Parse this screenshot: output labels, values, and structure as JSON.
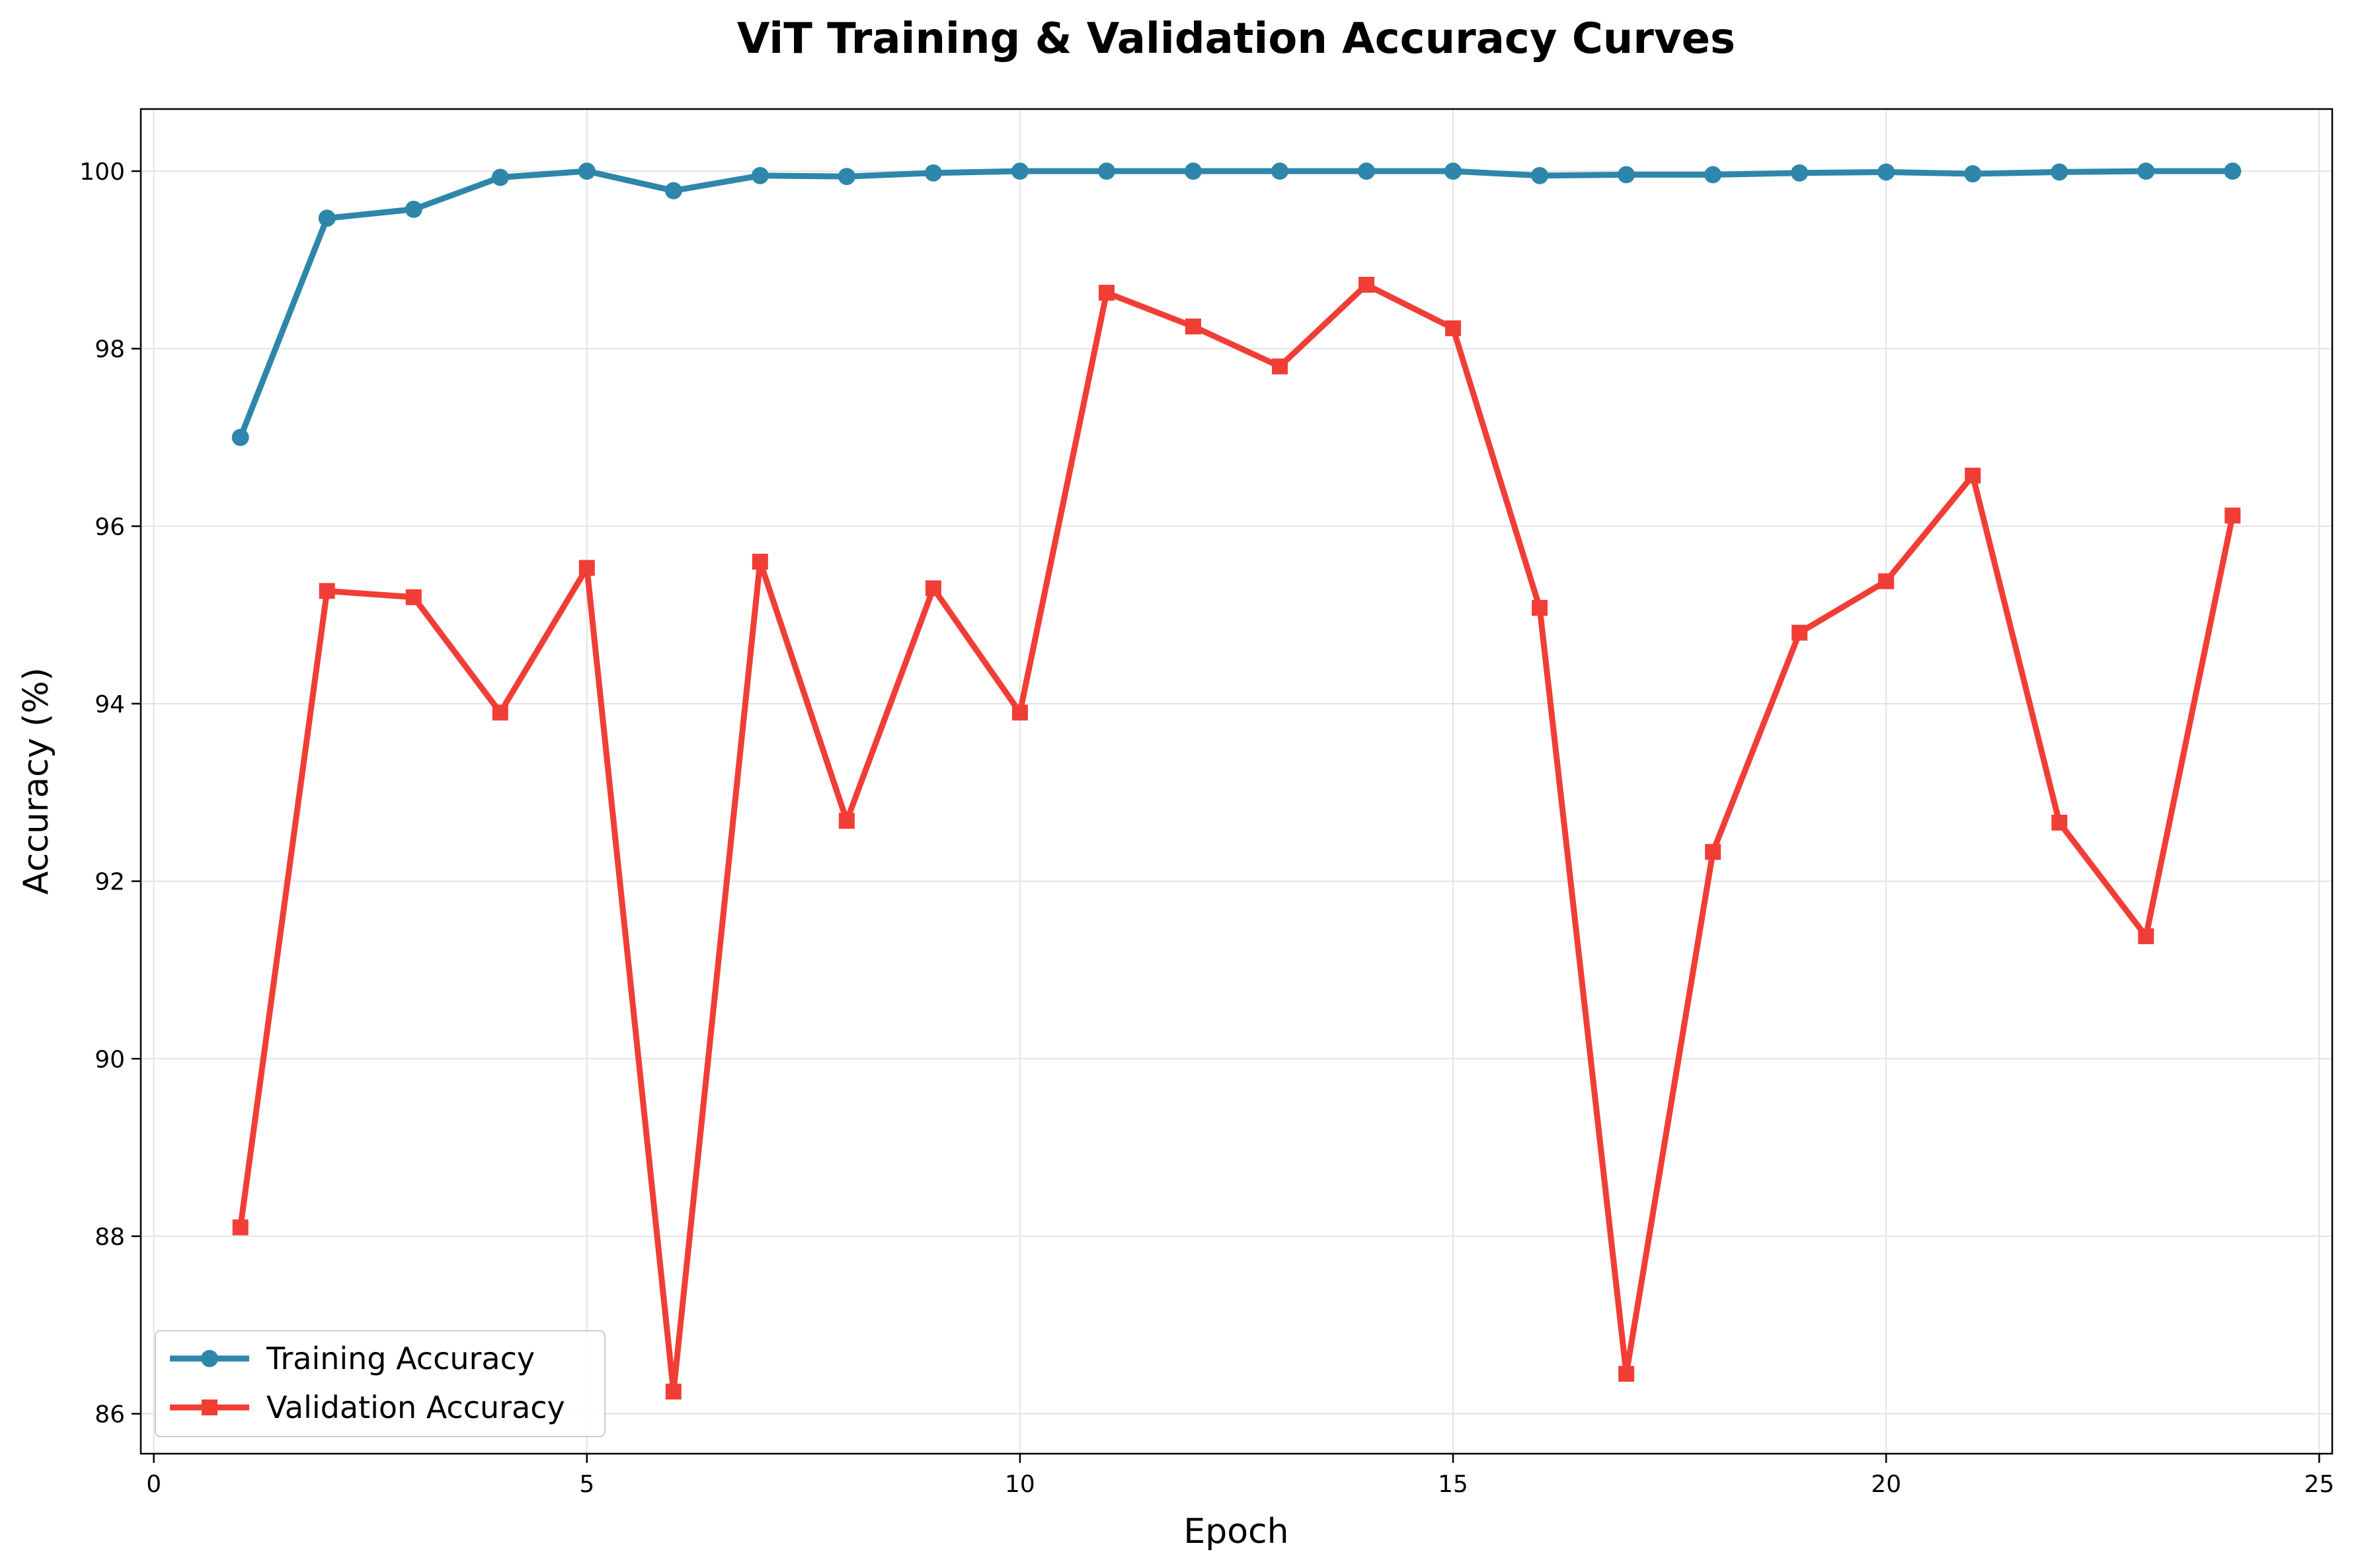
{
  "chart_data": {
    "type": "line",
    "title": "ViT Training & Validation Accuracy Curves",
    "xlabel": "Epoch",
    "ylabel": "Accuracy (%)",
    "xlim": [
      -0.15,
      25.15
    ],
    "ylim": [
      85.55,
      100.7
    ],
    "xticks": [
      0,
      5,
      10,
      15,
      20,
      25
    ],
    "yticks": [
      86,
      88,
      90,
      92,
      94,
      96,
      98,
      100
    ],
    "grid": true,
    "legend_position": "lower-left",
    "x": [
      1,
      2,
      3,
      4,
      5,
      6,
      7,
      8,
      9,
      10,
      11,
      12,
      13,
      14,
      15,
      16,
      17,
      18,
      19,
      20,
      21,
      22,
      23,
      24
    ],
    "series": [
      {
        "name": "Training Accuracy",
        "color": "#2e86ab",
        "marker": "circle",
        "values": [
          97.0,
          99.47,
          99.57,
          99.93,
          100.0,
          99.78,
          99.95,
          99.94,
          99.98,
          100.0,
          100.0,
          100.0,
          100.0,
          100.0,
          100.0,
          99.95,
          99.96,
          99.96,
          99.98,
          99.99,
          99.97,
          99.99,
          100.0,
          100.0
        ]
      },
      {
        "name": "Validation Accuracy",
        "color": "#f03e36",
        "marker": "square",
        "values": [
          88.1,
          95.27,
          95.2,
          93.9,
          95.53,
          86.25,
          95.6,
          92.68,
          95.3,
          93.9,
          98.63,
          98.25,
          97.8,
          98.72,
          98.23,
          95.08,
          86.45,
          92.33,
          94.8,
          95.38,
          96.57,
          92.66,
          91.38,
          96.12
        ]
      }
    ]
  }
}
